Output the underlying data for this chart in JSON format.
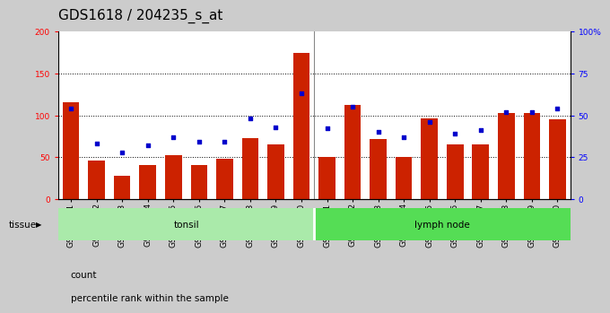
{
  "title": "GDS1618 / 204235_s_at",
  "categories": [
    "GSM51381",
    "GSM51382",
    "GSM51383",
    "GSM51384",
    "GSM51385",
    "GSM51386",
    "GSM51387",
    "GSM51388",
    "GSM51389",
    "GSM51390",
    "GSM51371",
    "GSM51372",
    "GSM51373",
    "GSM51374",
    "GSM51375",
    "GSM51376",
    "GSM51377",
    "GSM51378",
    "GSM51379",
    "GSM51380"
  ],
  "bar_values": [
    116,
    46,
    28,
    40,
    52,
    40,
    48,
    73,
    65,
    175,
    50,
    112,
    72,
    50,
    96,
    65,
    65,
    103,
    103,
    95
  ],
  "percentile_values": [
    54,
    33,
    28,
    32,
    37,
    34,
    34,
    48,
    43,
    63,
    42,
    55,
    40,
    37,
    46,
    39,
    41,
    52,
    52,
    54
  ],
  "bar_color": "#cc2200",
  "percentile_color": "#0000cc",
  "tonsil_color": "#aaeaaa",
  "lymph_color": "#55dd55",
  "bg_color": "#cccccc",
  "left_ylim": [
    0,
    200
  ],
  "right_ylim": [
    0,
    100
  ],
  "left_yticks": [
    0,
    50,
    100,
    150,
    200
  ],
  "right_yticks": [
    0,
    25,
    50,
    75,
    100
  ],
  "right_yticklabels": [
    "0",
    "25",
    "50",
    "75",
    "100%"
  ],
  "title_fontsize": 11,
  "tick_fontsize": 6.5,
  "label_fontsize": 7.5
}
